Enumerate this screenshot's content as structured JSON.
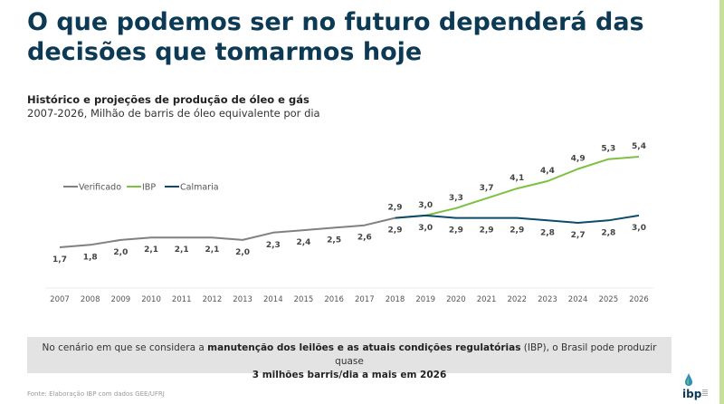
{
  "header": {
    "title": "O que podemos ser no futuro dependerá das decisões que tomarmos hoje"
  },
  "chart_data": {
    "type": "line",
    "title": "Histórico e projeções de produção de óleo e gás",
    "subtitle": "2007-2026, Milhão de barris de óleo equivalente por dia",
    "xlabel": "",
    "ylabel": "",
    "legend_position": "top-left",
    "grid": false,
    "categories": [
      "2007",
      "2008",
      "2009",
      "2010",
      "2011",
      "2012",
      "2013",
      "2014",
      "2015",
      "2016",
      "2017",
      "2018",
      "2019",
      "2020",
      "2021",
      "2022",
      "2023",
      "2024",
      "2025",
      "2026"
    ],
    "series": [
      {
        "name": "Verificado",
        "color": "#808080",
        "values": [
          1.7,
          1.8,
          2.0,
          2.1,
          2.1,
          2.1,
          2.0,
          2.3,
          2.4,
          2.5,
          2.6,
          2.9,
          null,
          null,
          null,
          null,
          null,
          null,
          null,
          null
        ],
        "labels": [
          "1,7",
          "1,8",
          "2,0",
          "2,1",
          "2,1",
          "2,1",
          "2,0",
          "2,3",
          "2,4",
          "2,5",
          "2,6",
          "",
          "",
          "",
          "",
          "",
          "",
          "",
          "",
          ""
        ]
      },
      {
        "name": "IBP",
        "color": "#7dc142",
        "values": [
          null,
          null,
          null,
          null,
          null,
          null,
          null,
          null,
          null,
          null,
          null,
          2.9,
          3.0,
          3.3,
          3.7,
          4.1,
          4.4,
          4.9,
          5.3,
          5.4
        ],
        "labels": [
          "",
          "",
          "",
          "",
          "",
          "",
          "",
          "",
          "",
          "",
          "",
          "2,9",
          "3,0",
          "3,3",
          "3,7",
          "4,1",
          "4,4",
          "4,9",
          "5,3",
          "5,4"
        ]
      },
      {
        "name": "Calmaria",
        "color": "#0c4a6e",
        "values": [
          null,
          null,
          null,
          null,
          null,
          null,
          null,
          null,
          null,
          null,
          null,
          2.9,
          3.0,
          2.9,
          2.9,
          2.9,
          2.8,
          2.7,
          2.8,
          3.0
        ],
        "labels": [
          "",
          "",
          "",
          "",
          "",
          "",
          "",
          "",
          "",
          "",
          "",
          "2,9",
          "3,0",
          "2,9",
          "2,9",
          "2,9",
          "2,8",
          "2,7",
          "2,8",
          "3,0"
        ]
      }
    ],
    "ylim": [
      1.7,
      5.4
    ]
  },
  "note": {
    "text_before": "No cenário em que se considera a ",
    "bold_1": "manutenção dos leilões e as atuais condições regulatórias",
    "text_middle": " (IBP), o Brasil pode produzir quase",
    "bold_2": "3 milhões barris/dia a mais em 2026"
  },
  "source": "Fonte: Elaboração IBP com dados GEE/UFRJ",
  "logo": {
    "text": "ibp",
    "icon": "oil-drop-icon"
  },
  "colors": {
    "title": "#0c3a55",
    "accent_bar": "#c5e09a",
    "note_bg": "#e3e3e3"
  }
}
